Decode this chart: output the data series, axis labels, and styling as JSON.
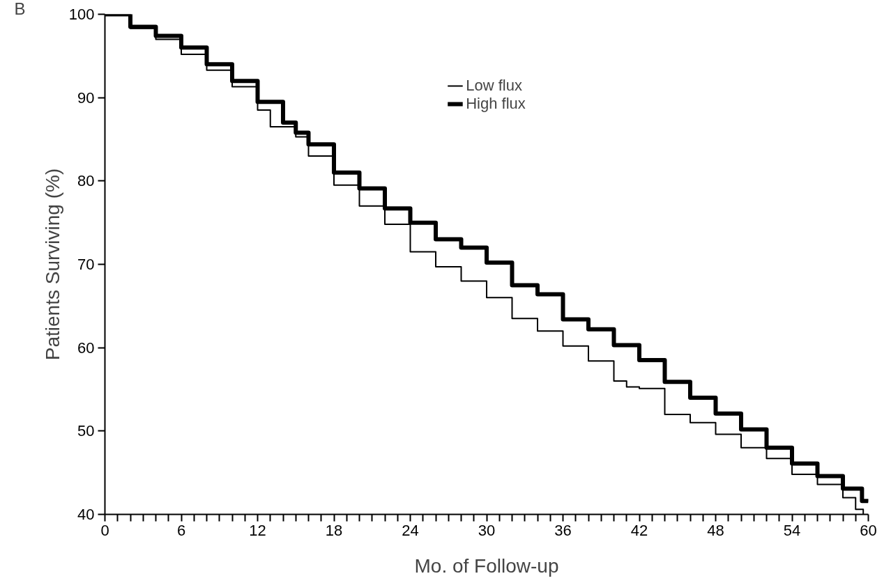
{
  "chart_data": {
    "type": "step",
    "xlabel": "Mo. of Follow-up",
    "ylabel": "Patients Surviving (%)",
    "annotations": [
      "B"
    ],
    "series": [
      {
        "name": "Low flux",
        "color": "#000000",
        "x": [
          0,
          2,
          4,
          6,
          8,
          10,
          12,
          13,
          15,
          16,
          18,
          20,
          22,
          24,
          26,
          28,
          30,
          32,
          34,
          36,
          38,
          40,
          41,
          42,
          44,
          46,
          48,
          50,
          52,
          54,
          56,
          58,
          59,
          59.6
        ],
        "values": [
          100,
          98.3,
          97,
          95.2,
          93.3,
          91.3,
          88.5,
          86.5,
          85.3,
          83,
          79.5,
          77,
          74.8,
          71.5,
          69.7,
          68,
          66,
          63.5,
          62,
          60.2,
          58.4,
          56,
          55.3,
          55.1,
          52,
          51,
          49.6,
          48,
          46.7,
          44.8,
          43.6,
          42,
          40.6,
          40
        ]
      },
      {
        "name": "High flux",
        "color": "#000000",
        "x": [
          0,
          2,
          4,
          6,
          8,
          10,
          12,
          14,
          15,
          16,
          18,
          20,
          22,
          24,
          26,
          28,
          30,
          32,
          34,
          36,
          38,
          40,
          42,
          44,
          46,
          48,
          50,
          52,
          54,
          56,
          58,
          59.5,
          60
        ],
        "values": [
          100,
          98.5,
          97.4,
          96,
          94,
          92,
          89.5,
          87,
          85.8,
          84.4,
          81,
          79.1,
          76.7,
          75,
          73,
          72,
          70.2,
          67.5,
          66.4,
          63.4,
          62.2,
          60.3,
          58.5,
          55.9,
          54,
          52.1,
          50.2,
          48,
          46.1,
          44.6,
          43.1,
          41.6,
          41.5
        ]
      }
    ],
    "xlim": [
      0,
      60
    ],
    "ylim": [
      40,
      100
    ],
    "xticks": [
      0,
      {
        "value": 1,
        "label": null
      },
      {
        "value": 2,
        "label": null
      },
      {
        "value": 3,
        "label": null
      },
      {
        "value": 4,
        "label": null
      },
      {
        "value": 5,
        "label": null
      },
      6,
      {
        "value": 7,
        "label": null
      },
      {
        "value": 8,
        "label": null
      },
      {
        "value": 9,
        "label": null
      },
      {
        "value": 10,
        "label": null
      },
      {
        "value": 11,
        "label": null
      },
      12,
      {
        "value": 13,
        "label": null
      },
      {
        "value": 14,
        "label": null
      },
      {
        "value": 15,
        "label": null
      },
      {
        "value": 16,
        "label": null
      },
      {
        "value": 17,
        "label": null
      },
      18,
      {
        "value": 19,
        "label": null
      },
      {
        "value": 20,
        "label": null
      },
      {
        "value": 21,
        "label": null
      },
      {
        "value": 22,
        "label": null
      },
      {
        "value": 23,
        "label": null
      },
      24,
      {
        "value": 25,
        "label": null
      },
      {
        "value": 26,
        "label": null
      },
      {
        "value": 27,
        "label": null
      },
      {
        "value": 28,
        "label": null
      },
      {
        "value": 29,
        "label": null
      },
      30,
      {
        "value": 31,
        "label": null
      },
      {
        "value": 32,
        "label": null
      },
      {
        "value": 33,
        "label": null
      },
      {
        "value": 34,
        "label": null
      },
      {
        "value": 35,
        "label": null
      },
      36,
      {
        "value": 37,
        "label": null
      },
      {
        "value": 38,
        "label": null
      },
      {
        "value": 39,
        "label": null
      },
      {
        "value": 40,
        "label": null
      },
      {
        "value": 41,
        "label": null
      },
      42,
      {
        "value": 43,
        "label": null
      },
      {
        "value": 44,
        "label": null
      },
      {
        "value": 45,
        "label": null
      },
      {
        "value": 46,
        "label": null
      },
      {
        "value": 47,
        "label": null
      },
      48,
      {
        "value": 49,
        "label": null
      },
      {
        "value": 50,
        "label": null
      },
      {
        "value": 51,
        "label": null
      },
      {
        "value": 52,
        "label": null
      },
      {
        "value": 53,
        "label": null
      },
      54,
      {
        "value": 55,
        "label": null
      },
      {
        "value": 56,
        "label": null
      },
      {
        "value": 57,
        "label": null
      },
      {
        "value": 58,
        "label": null
      },
      {
        "value": 59,
        "label": null
      },
      60
    ],
    "yticks": [
      40,
      50,
      60,
      70,
      80,
      90,
      100
    ],
    "grid": false,
    "legend": "top"
  }
}
